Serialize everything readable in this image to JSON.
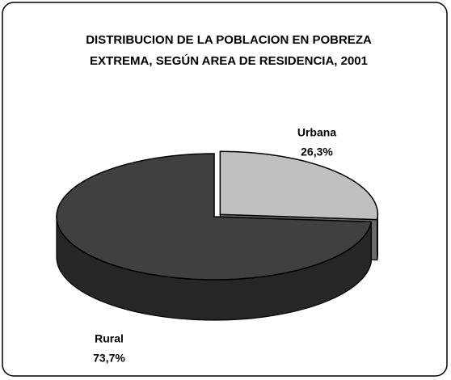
{
  "chart_data": {
    "type": "pie3d",
    "title": [
      "DISTRIBUCION DE LA POBLACION EN POBREZA",
      "EXTREMA, SEGÚN AREA DE RESIDENCIA, 2001"
    ],
    "categories": [
      "Urbana",
      "Rural"
    ],
    "values": [
      26.3,
      73.7
    ],
    "value_labels": [
      "26,3%",
      "73,7%"
    ],
    "colors": [
      "#c0c0c0",
      "#404040"
    ]
  }
}
